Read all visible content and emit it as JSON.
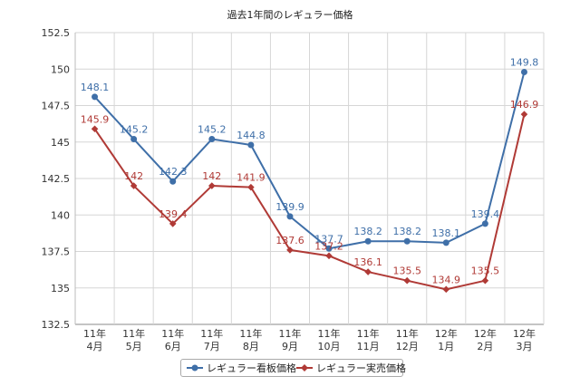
{
  "chart_data": {
    "type": "line",
    "title": "過去1年間のレギュラー価格",
    "categories": [
      [
        "11年",
        "4月"
      ],
      [
        "11年",
        "5月"
      ],
      [
        "11年",
        "6月"
      ],
      [
        "11年",
        "7月"
      ],
      [
        "11年",
        "8月"
      ],
      [
        "11年",
        "9月"
      ],
      [
        "11年",
        "10月"
      ],
      [
        "11年",
        "11月"
      ],
      [
        "11年",
        "12月"
      ],
      [
        "12年",
        "1月"
      ],
      [
        "12年",
        "2月"
      ],
      [
        "12年",
        "3月"
      ]
    ],
    "ylim": [
      132.5,
      152.5
    ],
    "yticks": [
      "132.5",
      "135",
      "137.5",
      "140",
      "142.5",
      "145",
      "147.5",
      "150",
      "152.5"
    ],
    "grid": true,
    "legend_position": "bottom",
    "series": [
      {
        "name": "レギュラー看板価格",
        "color": "#3f6fa8",
        "marker": "circle",
        "values": [
          148.1,
          145.2,
          142.3,
          145.2,
          144.8,
          139.9,
          137.7,
          138.2,
          138.2,
          138.1,
          139.4,
          149.8
        ],
        "labels": [
          "148.1",
          "145.2",
          "142.3",
          "145.2",
          "144.8",
          "139.9",
          "137.7",
          "138.2",
          "138.2",
          "138.1",
          "139.4",
          "149.8"
        ]
      },
      {
        "name": "レギュラー実売価格",
        "color": "#b03a36",
        "marker": "diamond",
        "values": [
          145.9,
          142,
          139.4,
          142,
          141.9,
          137.6,
          137.2,
          136.1,
          135.5,
          134.9,
          135.5,
          146.9
        ],
        "labels": [
          "145.9",
          "142",
          "139.4",
          "142",
          "141.9",
          "137.6",
          "137.2",
          "136.1",
          "135.5",
          "134.9",
          "135.5",
          "146.9"
        ]
      }
    ]
  }
}
